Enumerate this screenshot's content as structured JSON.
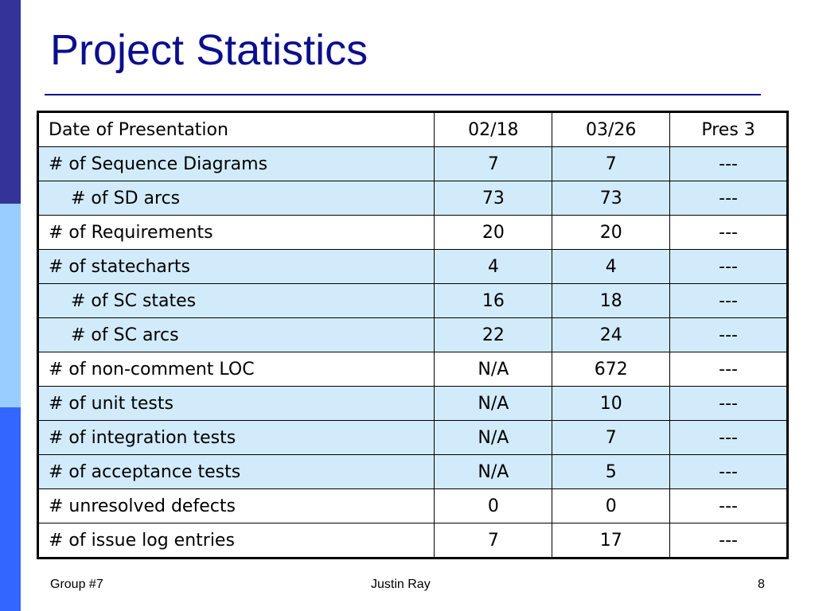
{
  "theme": {
    "side_colors": [
      "#333399",
      "#99ccff",
      "#3366ff"
    ],
    "title_color": "#0b0f8c",
    "shade_color": "#d2ebfb"
  },
  "slide": {
    "title": "Project Statistics",
    "table": {
      "headers": [
        "Date of Presentation",
        "02/18",
        "03/26",
        "Pres 3"
      ],
      "rows": [
        {
          "cells": [
            "# of Sequence Diagrams",
            "7",
            "7",
            "---"
          ],
          "indent": false,
          "shaded": true
        },
        {
          "cells": [
            "# of SD arcs",
            "73",
            "73",
            "---"
          ],
          "indent": true,
          "shaded": true
        },
        {
          "cells": [
            "# of Requirements",
            "20",
            "20",
            "---"
          ],
          "indent": false,
          "shaded": false
        },
        {
          "cells": [
            "# of statecharts",
            "4",
            "4",
            "---"
          ],
          "indent": false,
          "shaded": true
        },
        {
          "cells": [
            "# of SC states",
            "16",
            "18",
            "---"
          ],
          "indent": true,
          "shaded": true
        },
        {
          "cells": [
            "# of SC arcs",
            "22",
            "24",
            "---"
          ],
          "indent": true,
          "shaded": true
        },
        {
          "cells": [
            "# of non-comment LOC",
            "N/A",
            "672",
            "---"
          ],
          "indent": false,
          "shaded": false
        },
        {
          "cells": [
            "# of unit tests",
            "N/A",
            "10",
            "---"
          ],
          "indent": false,
          "shaded": true
        },
        {
          "cells": [
            "# of integration tests",
            "N/A",
            "7",
            "---"
          ],
          "indent": false,
          "shaded": true
        },
        {
          "cells": [
            "# of acceptance tests",
            "N/A",
            "5",
            "---"
          ],
          "indent": false,
          "shaded": true
        },
        {
          "cells": [
            "# unresolved defects",
            "0",
            "0",
            "---"
          ],
          "indent": false,
          "shaded": false
        },
        {
          "cells": [
            "# of issue log entries",
            "7",
            "17",
            "---"
          ],
          "indent": false,
          "shaded": false
        }
      ]
    },
    "footer": {
      "left": "Group #7",
      "center": "Justin Ray",
      "right": "8"
    }
  }
}
